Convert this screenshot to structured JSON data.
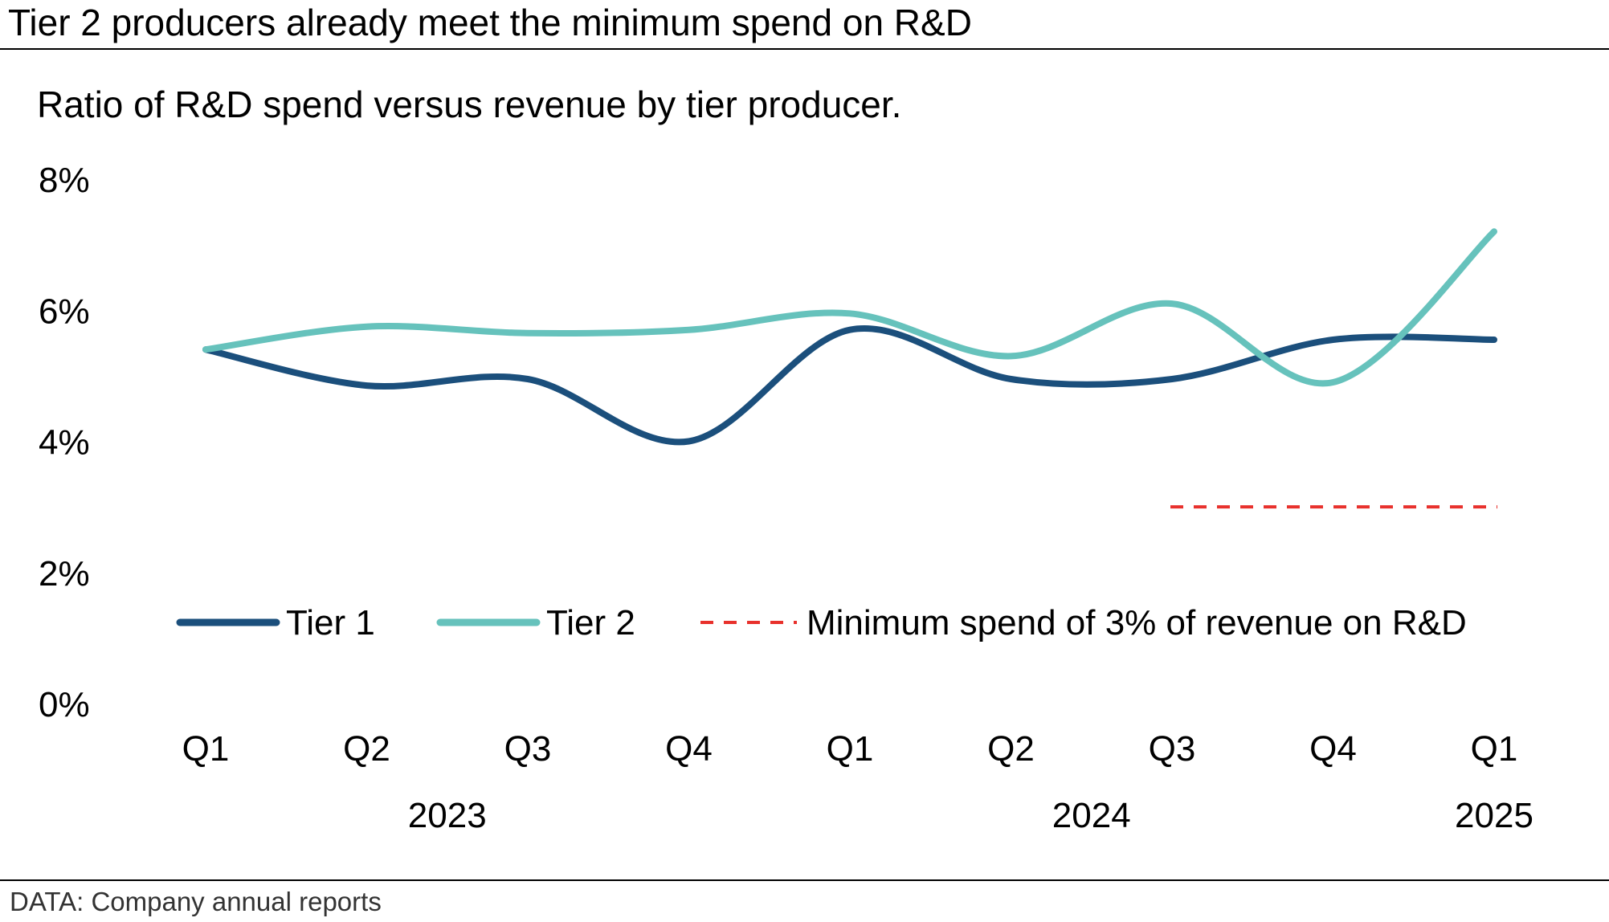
{
  "chart_data": {
    "type": "line",
    "title": "Tier 2 producers already meet the minimum spend on R&D",
    "subtitle": "Ratio of R&D spend versus revenue by tier producer.",
    "source": "DATA: Company annual reports",
    "categories": [
      "Q1",
      "Q2",
      "Q3",
      "Q4",
      "Q1",
      "Q2",
      "Q3",
      "Q4",
      "Q1"
    ],
    "category_groups": [
      {
        "label": "2023",
        "start": 0,
        "end": 3
      },
      {
        "label": "2024",
        "start": 4,
        "end": 7
      },
      {
        "label": "2025",
        "start": 8,
        "end": 8
      }
    ],
    "series": [
      {
        "name": "Tier 1",
        "color": "#1b4f7c",
        "values": [
          5.4,
          4.85,
          4.95,
          4.0,
          5.7,
          4.95,
          4.95,
          5.55,
          5.55
        ]
      },
      {
        "name": "Tier 2",
        "color": "#66c2bc",
        "values": [
          5.4,
          5.75,
          5.65,
          5.7,
          5.95,
          5.3,
          6.1,
          4.9,
          7.2
        ]
      }
    ],
    "reference_line": {
      "name": "Minimum spend of 3% of revenue on R&D",
      "value": 3,
      "from_index": 6,
      "to_index": 8,
      "color": "#e8312c"
    },
    "y_ticks": [
      0,
      2,
      4,
      6,
      8
    ],
    "y_tick_labels": [
      "0%",
      "2%",
      "4%",
      "6%",
      "8%"
    ],
    "ylim": [
      0,
      8
    ],
    "xlabel": "",
    "ylabel": "",
    "grid": false,
    "legend_position": "bottom-inside"
  }
}
